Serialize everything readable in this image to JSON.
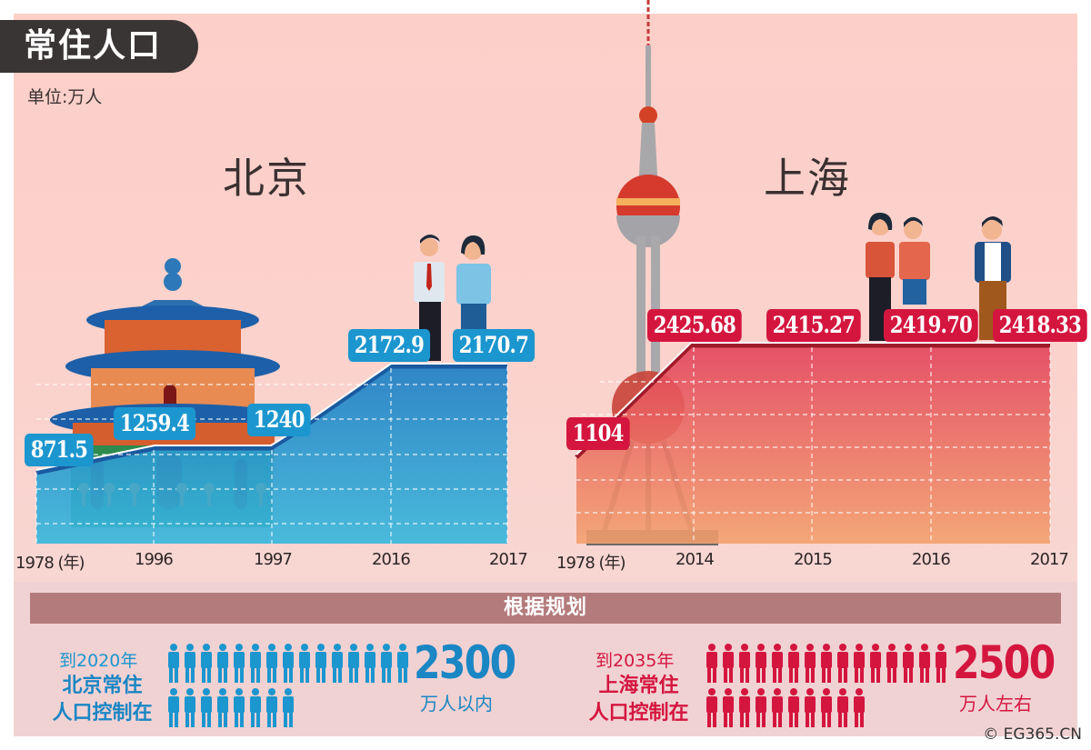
{
  "header": {
    "title": "常住人口",
    "unit": "单位:万人"
  },
  "beijing": {
    "city": "北京",
    "color": "#1b96cf",
    "years": [
      "1978 (年)",
      "1996",
      "1997",
      "2016",
      "2017"
    ],
    "labels": [
      "871.5",
      "1259.4",
      "1240",
      "2172.9",
      "2170.7"
    ]
  },
  "shanghai": {
    "city": "上海",
    "color": "#d4163f",
    "years": [
      "1978 (年)",
      "2014",
      "2015",
      "2016",
      "2017"
    ],
    "labels": [
      "1104",
      "2425.68",
      "2415.27",
      "2419.70",
      "2418.33"
    ]
  },
  "plan": {
    "heading": "根据规划",
    "beijing": {
      "year": "到2020年",
      "desc_line1": "北京常住",
      "desc_line2": "人口控制在",
      "target": "2300",
      "unit": "万人以内",
      "icons_row1": 15,
      "icons_row2": 8
    },
    "shanghai": {
      "year": "到2035年",
      "desc_line1": "上海常住",
      "desc_line2": "人口控制在",
      "target": "2500",
      "unit": "万人左右",
      "icons_row1": 15,
      "icons_row2": 10
    }
  },
  "copyright": "© EG365.CN",
  "chart_data": [
    {
      "type": "area",
      "title": "北京 常住人口",
      "ylabel": "万人",
      "categories": [
        "1978",
        "1996",
        "1997",
        "2016",
        "2017"
      ],
      "values": [
        871.5,
        1259.4,
        1240,
        2172.9,
        2170.7
      ],
      "grid": true
    },
    {
      "type": "area",
      "title": "上海 常住人口",
      "ylabel": "万人",
      "categories": [
        "1978",
        "2014",
        "2015",
        "2016",
        "2017"
      ],
      "values": [
        1104,
        2425.68,
        2415.27,
        2419.7,
        2418.33
      ],
      "grid": true
    },
    {
      "type": "table",
      "title": "根据规划",
      "rows": [
        {
          "city": "北京",
          "by_year": "2020",
          "target_wan": 2300,
          "qualifier": "万人以内"
        },
        {
          "city": "上海",
          "by_year": "2035",
          "target_wan": 2500,
          "qualifier": "万人左右"
        }
      ]
    }
  ]
}
